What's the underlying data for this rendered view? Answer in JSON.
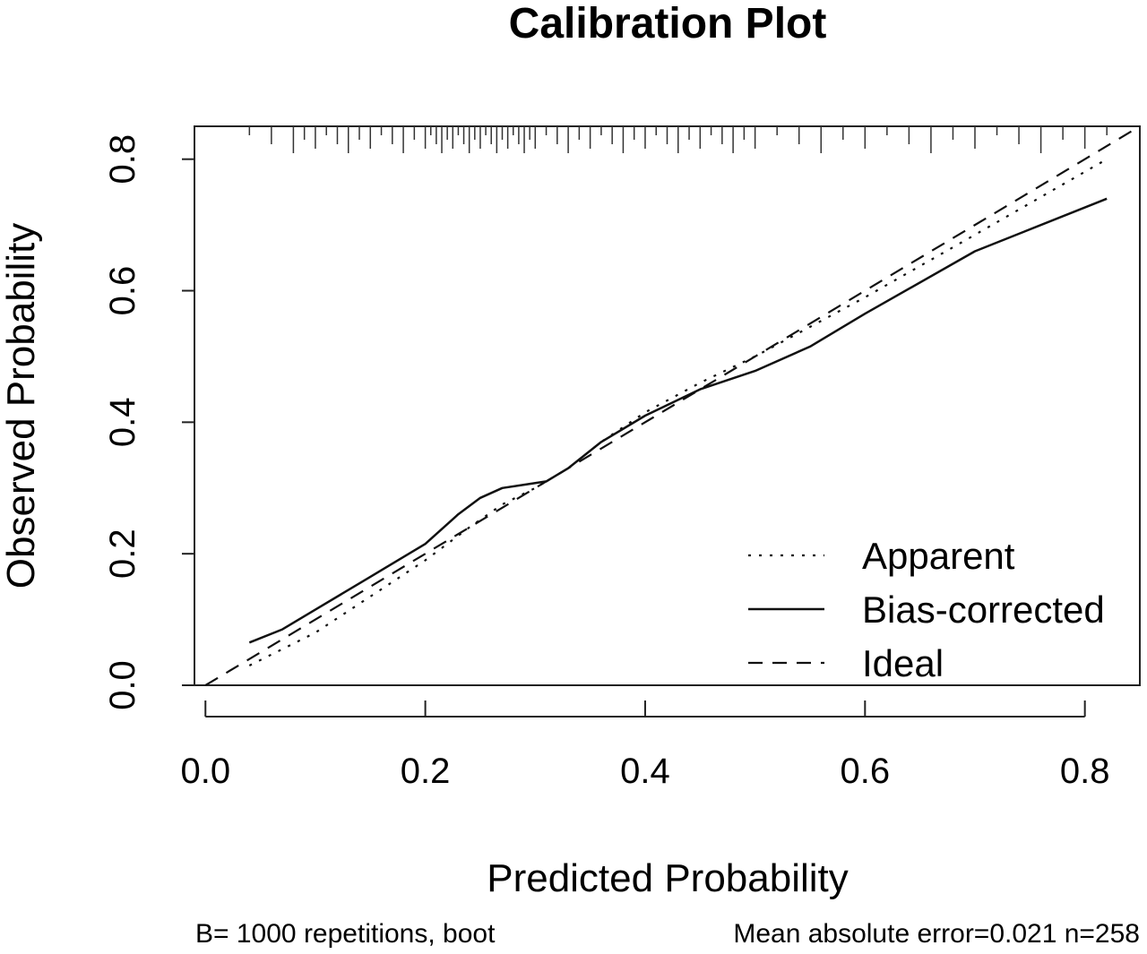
{
  "chart_data": {
    "type": "line",
    "title": "Calibration Plot",
    "xlabel": "Predicted Probability",
    "ylabel": "Observed Probability",
    "xlim": [
      -0.01,
      0.85
    ],
    "ylim": [
      0.0,
      0.85
    ],
    "x_ticks": [
      "0.0",
      "0.2",
      "0.4",
      "0.6",
      "0.8"
    ],
    "y_ticks": [
      "0.0",
      "0.2",
      "0.4",
      "0.6",
      "0.8"
    ],
    "grid": false,
    "legend_position": "bottom-right",
    "series": [
      {
        "name": "Apparent",
        "style": "dotted",
        "x": [
          0.04,
          0.1,
          0.15,
          0.2,
          0.24,
          0.27,
          0.3,
          0.33,
          0.36,
          0.4,
          0.45,
          0.5,
          0.55,
          0.6,
          0.7,
          0.82
        ],
        "y": [
          0.03,
          0.08,
          0.135,
          0.19,
          0.24,
          0.275,
          0.3,
          0.33,
          0.37,
          0.415,
          0.46,
          0.5,
          0.545,
          0.59,
          0.685,
          0.8
        ]
      },
      {
        "name": "Bias-corrected",
        "style": "solid",
        "x": [
          0.04,
          0.07,
          0.1,
          0.15,
          0.2,
          0.23,
          0.25,
          0.27,
          0.29,
          0.31,
          0.33,
          0.36,
          0.4,
          0.45,
          0.5,
          0.55,
          0.6,
          0.7,
          0.82
        ],
        "y": [
          0.065,
          0.085,
          0.115,
          0.165,
          0.215,
          0.26,
          0.285,
          0.3,
          0.305,
          0.31,
          0.33,
          0.37,
          0.41,
          0.45,
          0.478,
          0.515,
          0.565,
          0.66,
          0.74
        ]
      },
      {
        "name": "Ideal",
        "style": "dashed",
        "x": [
          0.0,
          0.85
        ],
        "y": [
          0.0,
          0.85
        ]
      }
    ],
    "rug_top": [
      0.04,
      0.06,
      0.08,
      0.09,
      0.1,
      0.11,
      0.12,
      0.13,
      0.14,
      0.15,
      0.16,
      0.17,
      0.18,
      0.19,
      0.2,
      0.205,
      0.21,
      0.215,
      0.22,
      0.225,
      0.23,
      0.235,
      0.24,
      0.245,
      0.25,
      0.255,
      0.26,
      0.265,
      0.27,
      0.275,
      0.28,
      0.285,
      0.29,
      0.295,
      0.3,
      0.31,
      0.32,
      0.33,
      0.34,
      0.35,
      0.36,
      0.37,
      0.38,
      0.39,
      0.4,
      0.41,
      0.42,
      0.43,
      0.44,
      0.45,
      0.46,
      0.47,
      0.48,
      0.49,
      0.5,
      0.52,
      0.54,
      0.56,
      0.58,
      0.6,
      0.62,
      0.64,
      0.66,
      0.68,
      0.7,
      0.72,
      0.74,
      0.76,
      0.78,
      0.8,
      0.82
    ]
  },
  "footnote_left": "B= 1000 repetitions, boot",
  "footnote_right": "Mean absolute error=0.021 n=258"
}
